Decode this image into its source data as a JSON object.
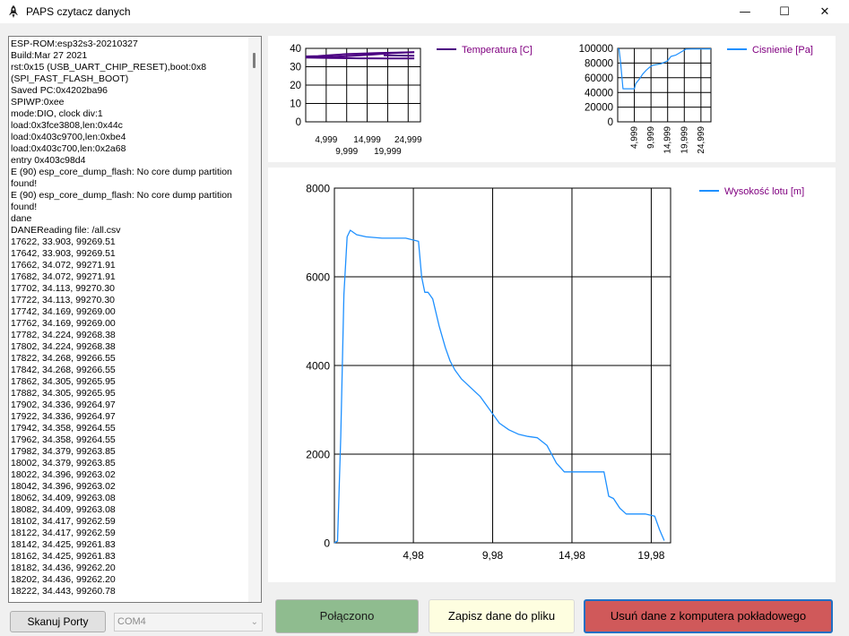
{
  "window": {
    "title": "PAPS czytacz danych",
    "min_glyph": "—",
    "max_glyph": "☐",
    "close_glyph": "✕",
    "icons": [
      "rocket-icon",
      "minimize-icon",
      "maximize-icon",
      "close-icon"
    ]
  },
  "log": {
    "lines": [
      "ESP-ROM:esp32s3-20210327",
      "Build:Mar 27 2021",
      "rst:0x15 (USB_UART_CHIP_RESET),boot:0x8 (SPI_FAST_FLASH_BOOT)",
      "Saved PC:0x4202ba96",
      "SPIWP:0xee",
      "mode:DIO, clock div:1",
      "load:0x3fce3808,len:0x44c",
      "load:0x403c9700,len:0xbe4",
      "load:0x403c700,len:0x2a68",
      "entry 0x403c98d4",
      "E (90) esp_core_dump_flash: No core dump partition found!",
      "E (90) esp_core_dump_flash: No core dump partition found!",
      "dane",
      "DANEReading file: /all.csv",
      "17622, 33.903, 99269.51",
      "17642, 33.903, 99269.51",
      "17662, 34.072, 99271.91",
      "17682, 34.072, 99271.91",
      "17702, 34.113, 99270.30",
      "17722, 34.113, 99270.30",
      "17742, 34.169, 99269.00",
      "17762, 34.169, 99269.00",
      "17782, 34.224, 99268.38",
      "17802, 34.224, 99268.38",
      "17822, 34.268, 99266.55",
      "17842, 34.268, 99266.55",
      "17862, 34.305, 99265.95",
      "17882, 34.305, 99265.95",
      "17902, 34.336, 99264.97",
      "17922, 34.336, 99264.97",
      "17942, 34.358, 99264.55",
      "17962, 34.358, 99264.55",
      "17982, 34.379, 99263.85",
      "18002, 34.379, 99263.85",
      "18022, 34.396, 99263.02",
      "18042, 34.396, 99263.02",
      "18062, 34.409, 99263.08",
      "18082, 34.409, 99263.08",
      "18102, 34.417, 99262.59",
      "18122, 34.417, 99262.59",
      "18142, 34.425, 99261.83",
      "18162, 34.425, 99261.83",
      "18182, 34.436, 99262.20",
      "18202, 34.436, 99262.20",
      "18222, 34.443, 99260.78"
    ]
  },
  "controls": {
    "scan_ports": "Skanuj Porty",
    "port_value": "COM4",
    "connected": "Połączono",
    "save_data": "Zapisz dane do pliku",
    "delete_data": "Usuń dane z komputera pokładowego"
  },
  "colors": {
    "temperature": "#4b0082",
    "pressure": "#1e90ff",
    "altitude": "#1e90ff",
    "connected_bg": "#8fbc8f",
    "save_bg": "#fefee0",
    "delete_bg": "#d0595a"
  },
  "chart_data": [
    {
      "id": "temperature",
      "type": "line",
      "legend": "Temperatura [C]",
      "legend_placement": "top-right",
      "ylim": [
        0,
        40
      ],
      "yticks": [
        "40",
        "30",
        "20",
        "10",
        "0"
      ],
      "xlim": [
        0,
        28000
      ],
      "xticks_row1": [
        "4,999",
        "14,999",
        "24,999"
      ],
      "xticks_row2": [
        "9,999",
        "19,999"
      ],
      "grid": true,
      "series": [
        {
          "x": [
            0,
            3000,
            6000,
            10000,
            14000,
            18000,
            22000,
            26500
          ],
          "y": [
            35.6,
            35.8,
            36.3,
            36.9,
            37.2,
            37.5,
            37.7,
            37.9
          ]
        },
        {
          "x": [
            26500,
            21000,
            16000,
            11000,
            7000,
            2000,
            0
          ],
          "y": [
            37.9,
            37.4,
            36.6,
            35.9,
            35.4,
            35.2,
            35.3
          ]
        },
        {
          "x": [
            0,
            6000,
            13000,
            20000,
            26500
          ],
          "y": [
            35.0,
            34.8,
            34.6,
            34.5,
            34.5
          ]
        },
        {
          "x": [
            19000,
            26500
          ],
          "y": [
            36.2,
            36.0
          ]
        }
      ]
    },
    {
      "id": "pressure",
      "type": "line",
      "legend": "Cisnienie [Pa]",
      "legend_placement": "top-right",
      "ylim": [
        0,
        100000
      ],
      "yticks": [
        "100000",
        "80000",
        "60000",
        "40000",
        "20000",
        "0"
      ],
      "xlim": [
        0,
        28000
      ],
      "xticks": [
        "4,999",
        "9,999",
        "14,999",
        "19,999",
        "24,999"
      ],
      "grid": true,
      "series": [
        {
          "x": [
            0,
            400,
            900,
            1600,
            5000,
            5400,
            6500,
            7500,
            8500,
            9500,
            10500,
            13000,
            15000,
            16000,
            17500,
            19000,
            20500,
            22000,
            28000
          ],
          "y": [
            99260,
            99000,
            80000,
            45000,
            45000,
            52000,
            58000,
            65000,
            70000,
            74000,
            77000,
            79000,
            83000,
            89000,
            91000,
            95000,
            99000,
            99200,
            99260
          ]
        }
      ]
    },
    {
      "id": "altitude",
      "type": "line",
      "legend": "Wysokość lotu [m]",
      "legend_placement": "top-right",
      "ylim": [
        0,
        8000
      ],
      "yticks": [
        "8000",
        "6000",
        "4000",
        "2000",
        "0"
      ],
      "xlim": [
        0,
        21.2
      ],
      "xticks": [
        "4,98",
        "9,98",
        "14,98",
        "19,98"
      ],
      "grid": true,
      "series": [
        {
          "x": [
            0,
            0.2,
            0.4,
            0.6,
            0.8,
            1.0,
            1.4,
            2.0,
            3.0,
            4.5,
            5.3,
            5.5,
            5.7,
            5.9,
            6.2,
            6.6,
            7.0,
            7.3,
            7.6,
            8.0,
            8.6,
            9.2,
            9.8,
            10.4,
            11.0,
            11.6,
            12.2,
            12.8,
            13.4,
            14.0,
            14.5,
            14.8,
            15.3,
            16.0,
            17.0,
            17.3,
            17.6,
            18.0,
            18.4,
            19.0,
            19.6,
            20.2,
            20.5,
            20.8
          ],
          "y": [
            0,
            40,
            2400,
            5600,
            6900,
            7050,
            6950,
            6900,
            6870,
            6870,
            6800,
            6000,
            5650,
            5650,
            5500,
            4900,
            4400,
            4100,
            3900,
            3700,
            3500,
            3300,
            3000,
            2700,
            2550,
            2450,
            2400,
            2370,
            2200,
            1800,
            1600,
            1600,
            1600,
            1600,
            1600,
            1050,
            1000,
            780,
            650,
            650,
            650,
            600,
            300,
            50
          ]
        }
      ]
    }
  ]
}
